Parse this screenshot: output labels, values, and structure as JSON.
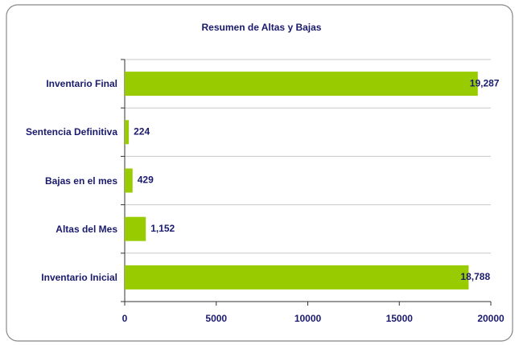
{
  "chart_data": {
    "type": "barh",
    "title": "Resumen de Altas y Bajas",
    "categories": [
      "Inventario Final",
      "Sentencia Definitiva",
      "Bajas en el mes",
      "Altas del Mes",
      "Inventario Inicial"
    ],
    "values": [
      19287,
      224,
      429,
      1152,
      18788
    ],
    "value_labels": [
      "19,287",
      "224",
      "429",
      "1,152",
      "18,788"
    ],
    "color": "#99cc00",
    "xlim": [
      0,
      20000
    ],
    "xticks": [
      0,
      5000,
      10000,
      15000,
      20000
    ],
    "grid": true
  }
}
